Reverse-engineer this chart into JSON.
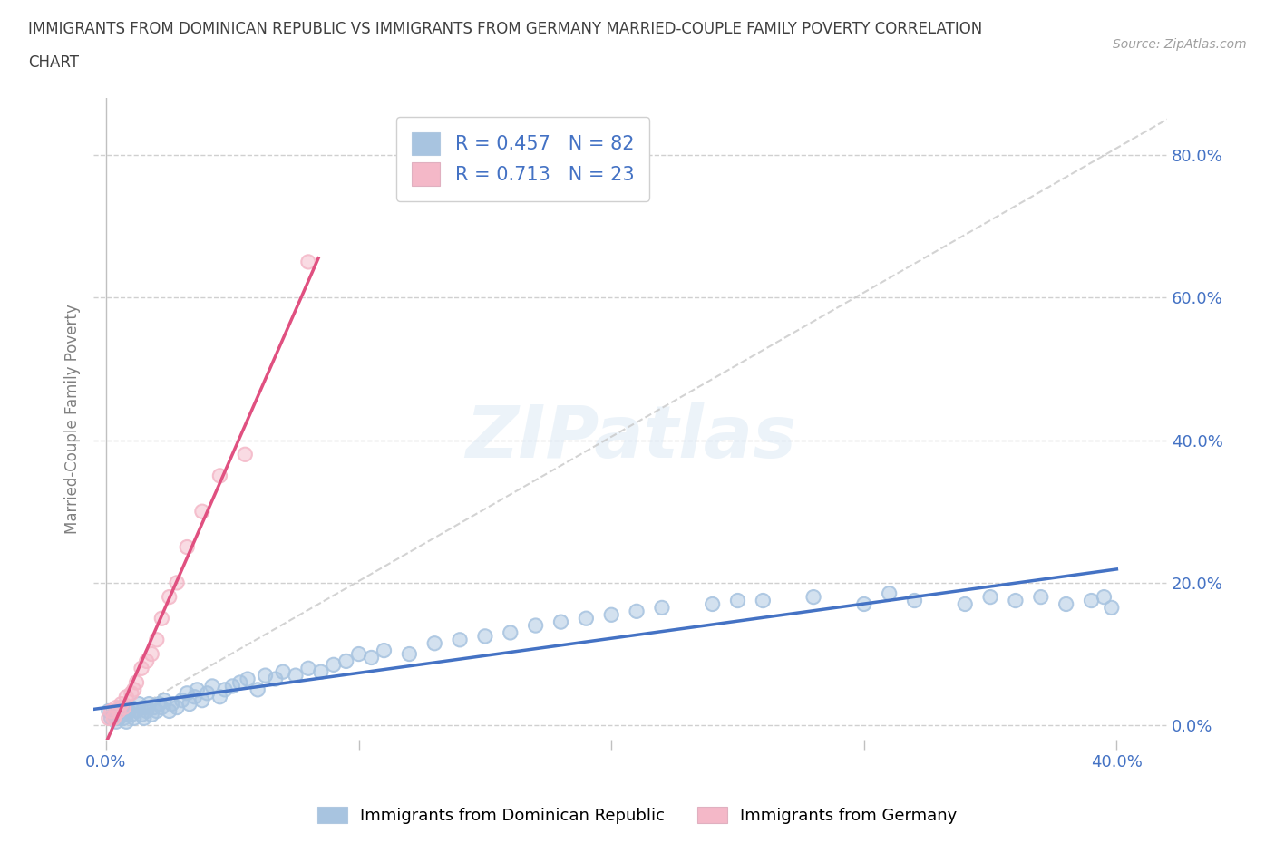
{
  "title_line1": "IMMIGRANTS FROM DOMINICAN REPUBLIC VS IMMIGRANTS FROM GERMANY MARRIED-COUPLE FAMILY POVERTY CORRELATION",
  "title_line2": "CHART",
  "source": "Source: ZipAtlas.com",
  "ylabel_label": "Married-Couple Family Poverty",
  "ytick_vals": [
    0.0,
    0.2,
    0.4,
    0.6,
    0.8
  ],
  "ytick_labels": [
    "0.0%",
    "20.0%",
    "40.0%",
    "60.0%",
    "80.0%"
  ],
  "xlim": [
    -0.005,
    0.42
  ],
  "ylim": [
    -0.02,
    0.88
  ],
  "watermark_text": "ZIPatlas",
  "blue_scatter_color": "#a8c4e0",
  "blue_line_color": "#4472c4",
  "pink_scatter_color": "#f4b8c8",
  "pink_line_color": "#e05080",
  "grid_color": "#d0d0d0",
  "diag_color": "#c8c8c8",
  "R_blue": 0.457,
  "N_blue": 82,
  "R_pink": 0.713,
  "N_pink": 23,
  "blue_x": [
    0.001,
    0.002,
    0.003,
    0.004,
    0.005,
    0.005,
    0.006,
    0.007,
    0.007,
    0.008,
    0.008,
    0.009,
    0.01,
    0.01,
    0.011,
    0.012,
    0.013,
    0.014,
    0.015,
    0.015,
    0.016,
    0.017,
    0.018,
    0.019,
    0.02,
    0.021,
    0.022,
    0.023,
    0.025,
    0.026,
    0.028,
    0.03,
    0.032,
    0.033,
    0.035,
    0.036,
    0.038,
    0.04,
    0.042,
    0.045,
    0.047,
    0.05,
    0.053,
    0.056,
    0.06,
    0.063,
    0.067,
    0.07,
    0.075,
    0.08,
    0.085,
    0.09,
    0.095,
    0.1,
    0.105,
    0.11,
    0.12,
    0.13,
    0.14,
    0.15,
    0.16,
    0.17,
    0.18,
    0.19,
    0.2,
    0.21,
    0.22,
    0.24,
    0.25,
    0.26,
    0.28,
    0.3,
    0.31,
    0.32,
    0.34,
    0.35,
    0.36,
    0.37,
    0.38,
    0.39,
    0.395,
    0.398
  ],
  "blue_y": [
    0.02,
    0.01,
    0.015,
    0.005,
    0.02,
    0.01,
    0.025,
    0.01,
    0.02,
    0.015,
    0.005,
    0.02,
    0.015,
    0.025,
    0.01,
    0.02,
    0.03,
    0.015,
    0.025,
    0.01,
    0.02,
    0.03,
    0.015,
    0.025,
    0.02,
    0.03,
    0.025,
    0.035,
    0.02,
    0.03,
    0.025,
    0.035,
    0.045,
    0.03,
    0.04,
    0.05,
    0.035,
    0.045,
    0.055,
    0.04,
    0.05,
    0.055,
    0.06,
    0.065,
    0.05,
    0.07,
    0.065,
    0.075,
    0.07,
    0.08,
    0.075,
    0.085,
    0.09,
    0.1,
    0.095,
    0.105,
    0.1,
    0.115,
    0.12,
    0.125,
    0.13,
    0.14,
    0.145,
    0.15,
    0.155,
    0.16,
    0.165,
    0.17,
    0.175,
    0.175,
    0.18,
    0.17,
    0.185,
    0.175,
    0.17,
    0.18,
    0.175,
    0.18,
    0.17,
    0.175,
    0.18,
    0.165
  ],
  "pink_x": [
    0.001,
    0.002,
    0.003,
    0.004,
    0.005,
    0.006,
    0.007,
    0.008,
    0.01,
    0.011,
    0.012,
    0.014,
    0.016,
    0.018,
    0.02,
    0.022,
    0.025,
    0.028,
    0.032,
    0.038,
    0.045,
    0.055,
    0.08
  ],
  "pink_y": [
    0.01,
    0.02,
    0.01,
    0.025,
    0.02,
    0.03,
    0.025,
    0.04,
    0.045,
    0.05,
    0.06,
    0.08,
    0.09,
    0.1,
    0.12,
    0.15,
    0.18,
    0.2,
    0.25,
    0.3,
    0.35,
    0.38,
    0.65
  ],
  "legend_label_blue": "Immigrants from Dominican Republic",
  "legend_label_pink": "Immigrants from Germany",
  "title_color": "#404040",
  "label_color": "#4472c4",
  "axis_label_color": "#808080"
}
